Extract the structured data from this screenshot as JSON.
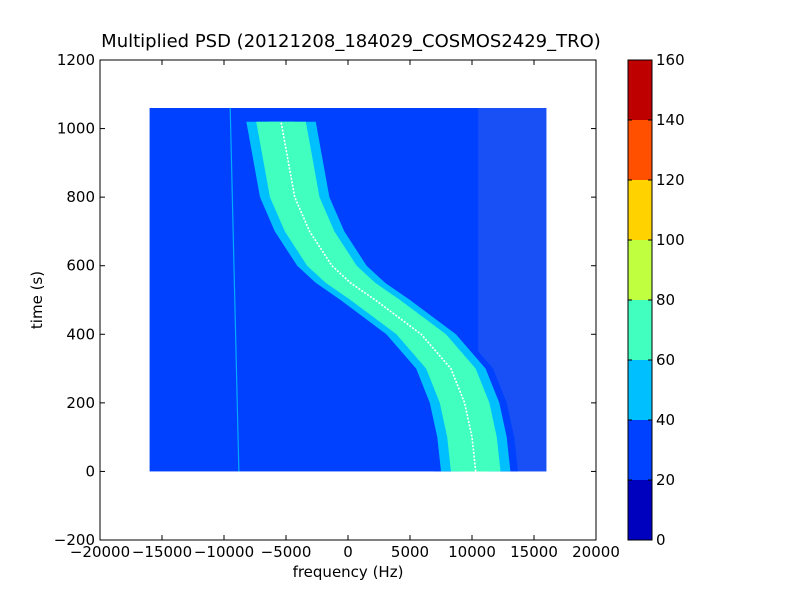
{
  "chart_data": {
    "type": "heatmap",
    "title": "Multiplied PSD (20121208_184029_COSMOS2429_TRO)",
    "xlabel": "frequency (Hz)",
    "ylabel": "time (s)",
    "xlim": [
      -20000,
      20000
    ],
    "ylim": [
      -200,
      1200
    ],
    "xticks": [
      -20000,
      -15000,
      -10000,
      -5000,
      0,
      5000,
      10000,
      15000,
      20000
    ],
    "xtick_labels": [
      "−20000",
      "−15000",
      "−10000",
      "−5000",
      "0",
      "5000",
      "10000",
      "15000",
      "20000"
    ],
    "yticks": [
      -200,
      0,
      200,
      400,
      600,
      800,
      1000,
      1200
    ],
    "ytick_labels": [
      "−200",
      "0",
      "200",
      "400",
      "600",
      "800",
      "1000",
      "1200"
    ],
    "data_extent": {
      "freq_min": -16000,
      "freq_max": 16000,
      "time_min": 0,
      "time_max": 1060
    },
    "background_level": 25,
    "right_background_level": 30,
    "faint_line": {
      "freq_at_time_0": -8800,
      "freq_at_time_max": -9500
    },
    "signal_trace": {
      "points": [
        {
          "time": 0,
          "freq": 10300
        },
        {
          "time": 100,
          "freq": 10000
        },
        {
          "time": 200,
          "freq": 9400
        },
        {
          "time": 300,
          "freq": 8300
        },
        {
          "time": 400,
          "freq": 5900
        },
        {
          "time": 500,
          "freq": 2200
        },
        {
          "time": 550,
          "freq": 200
        },
        {
          "time": 600,
          "freq": -1300
        },
        {
          "time": 700,
          "freq": -3100
        },
        {
          "time": 800,
          "freq": -4300
        },
        {
          "time": 900,
          "freq": -4800
        },
        {
          "time": 1000,
          "freq": -5300
        },
        {
          "time": 1020,
          "freq": -5400
        }
      ],
      "peak_level": 90,
      "band_halfwidths_hz": [
        {
          "level": 75,
          "halfwidth": 1100
        },
        {
          "level": 65,
          "halfwidth": 2000
        },
        {
          "level": 50,
          "halfwidth": 2800
        },
        {
          "level": 35,
          "halfwidth": 3400
        }
      ]
    },
    "colorbar": {
      "min": 0,
      "max": 160,
      "ticks": [
        0,
        20,
        40,
        60,
        80,
        100,
        120,
        140,
        160
      ],
      "tick_labels": [
        "0",
        "20",
        "40",
        "60",
        "80",
        "100",
        "120",
        "140",
        "160"
      ],
      "colors": [
        "#0000bf",
        "#0040ff",
        "#00bfff",
        "#40ffbf",
        "#bfff40",
        "#ffd200",
        "#ff5000",
        "#bf0000"
      ]
    },
    "grid": false
  }
}
